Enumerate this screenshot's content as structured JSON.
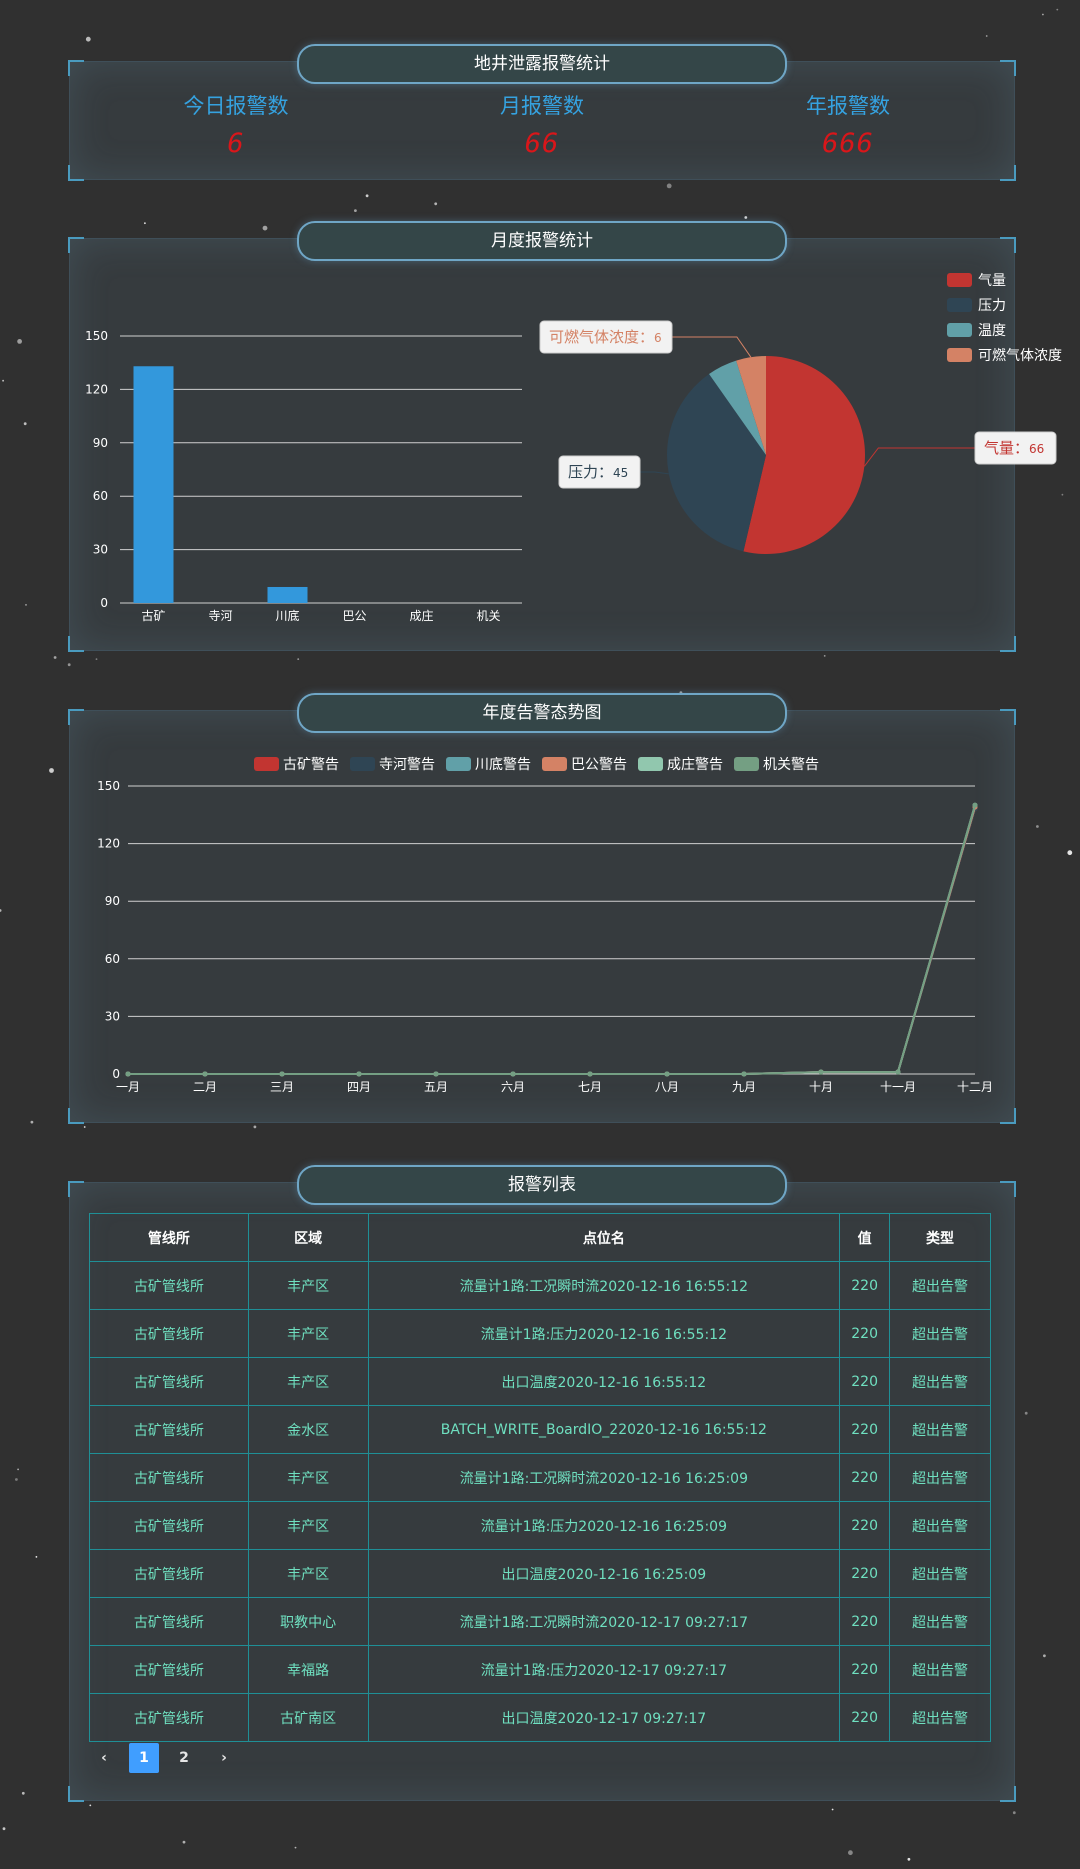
{
  "stats_panel": {
    "title": "地井泄露报警统计",
    "today_label": "今日报警数",
    "today_value": "6",
    "month_label": "月报警数",
    "month_value": "66",
    "year_label": "年报警数",
    "year_value": "666"
  },
  "monthly_panel": {
    "title": "月度报警统计"
  },
  "yearly_panel": {
    "title": "年度告警态势图"
  },
  "list_panel": {
    "title": "报警列表",
    "columns": [
      "管线所",
      "区域",
      "点位名",
      "值",
      "类型"
    ],
    "rows": [
      [
        "古矿管线所",
        "丰产区",
        "流量计1路:工况瞬时流2020-12-16 16:55:12",
        "220",
        "超出告警"
      ],
      [
        "古矿管线所",
        "丰产区",
        "流量计1路:压力2020-12-16 16:55:12",
        "220",
        "超出告警"
      ],
      [
        "古矿管线所",
        "丰产区",
        "出口温度2020-12-16 16:55:12",
        "220",
        "超出告警"
      ],
      [
        "古矿管线所",
        "金水区",
        "BATCH_WRITE_BoardIO_22020-12-16 16:55:12",
        "220",
        "超出告警"
      ],
      [
        "古矿管线所",
        "丰产区",
        "流量计1路:工况瞬时流2020-12-16 16:25:09",
        "220",
        "超出告警"
      ],
      [
        "古矿管线所",
        "丰产区",
        "流量计1路:压力2020-12-16 16:25:09",
        "220",
        "超出告警"
      ],
      [
        "古矿管线所",
        "丰产区",
        "出口温度2020-12-16 16:25:09",
        "220",
        "超出告警"
      ],
      [
        "古矿管线所",
        "职教中心",
        "流量计1路:工况瞬时流2020-12-17 09:27:17",
        "220",
        "超出告警"
      ],
      [
        "古矿管线所",
        "幸福路",
        "流量计1路:压力2020-12-17 09:27:17",
        "220",
        "超出告警"
      ],
      [
        "古矿管线所",
        "古矿南区",
        "出口温度2020-12-17 09:27:17",
        "220",
        "超出告警"
      ]
    ],
    "pagination": {
      "prev": "‹",
      "pages": [
        "1",
        "2"
      ],
      "current": "1",
      "next": "›"
    }
  },
  "colors": {
    "accent_blue": "#35a2e0",
    "alarm_red": "#d9161a",
    "table_text": "#6fe0c0",
    "table_border": "#1f8f96"
  },
  "chart_data": [
    {
      "type": "bar",
      "categories": [
        "古矿",
        "寺河",
        "川底",
        "巴公",
        "成庄",
        "机关"
      ],
      "values": [
        133,
        0,
        9,
        0,
        0,
        0
      ],
      "ylim": [
        0,
        150
      ],
      "yticks": [
        0,
        30,
        60,
        90,
        120,
        150
      ],
      "grid": true,
      "color": "#3398dc"
    },
    {
      "type": "pie",
      "slices": [
        {
          "name": "气量",
          "value": 66,
          "color": "#c23531"
        },
        {
          "name": "压力",
          "value": 45,
          "color": "#2f4554"
        },
        {
          "name": "温度",
          "value": 6,
          "color": "#61a0a8"
        },
        {
          "name": "可燃气体浓度",
          "value": 6,
          "color": "#d48265"
        }
      ],
      "legend": "top-right",
      "labels": [
        {
          "name": "气量",
          "value": "66"
        },
        {
          "name": "压力",
          "value": "45"
        },
        {
          "name": "可燃气体浓度",
          "value": "6"
        }
      ]
    },
    {
      "type": "line",
      "categories": [
        "一月",
        "二月",
        "三月",
        "四月",
        "五月",
        "六月",
        "七月",
        "八月",
        "九月",
        "十月",
        "十一月",
        "十二月"
      ],
      "ylim": [
        0,
        150
      ],
      "yticks": [
        0,
        30,
        60,
        90,
        120,
        150
      ],
      "grid": true,
      "legend": "top-center",
      "series": [
        {
          "name": "古矿警告",
          "color": "#c23531",
          "values": [
            0,
            0,
            0,
            0,
            0,
            0,
            0,
            0,
            0,
            1,
            1,
            138
          ]
        },
        {
          "name": "寺河警告",
          "color": "#2f4554",
          "values": [
            0,
            0,
            0,
            0,
            0,
            0,
            0,
            0,
            0,
            1,
            1,
            138
          ]
        },
        {
          "name": "川底警告",
          "color": "#61a0a8",
          "values": [
            0,
            0,
            0,
            0,
            0,
            0,
            0,
            0,
            0,
            1,
            1,
            139
          ]
        },
        {
          "name": "巴公警告",
          "color": "#d48265",
          "values": [
            0,
            0,
            0,
            0,
            0,
            0,
            0,
            0,
            0,
            1,
            1,
            139
          ]
        },
        {
          "name": "成庄警告",
          "color": "#91c7ae",
          "values": [
            0,
            0,
            0,
            0,
            0,
            0,
            0,
            0,
            0,
            1,
            1,
            140
          ]
        },
        {
          "name": "机关警告",
          "color": "#749f83",
          "values": [
            0,
            0,
            0,
            0,
            0,
            0,
            0,
            0,
            0,
            1,
            1,
            140
          ]
        }
      ]
    }
  ]
}
